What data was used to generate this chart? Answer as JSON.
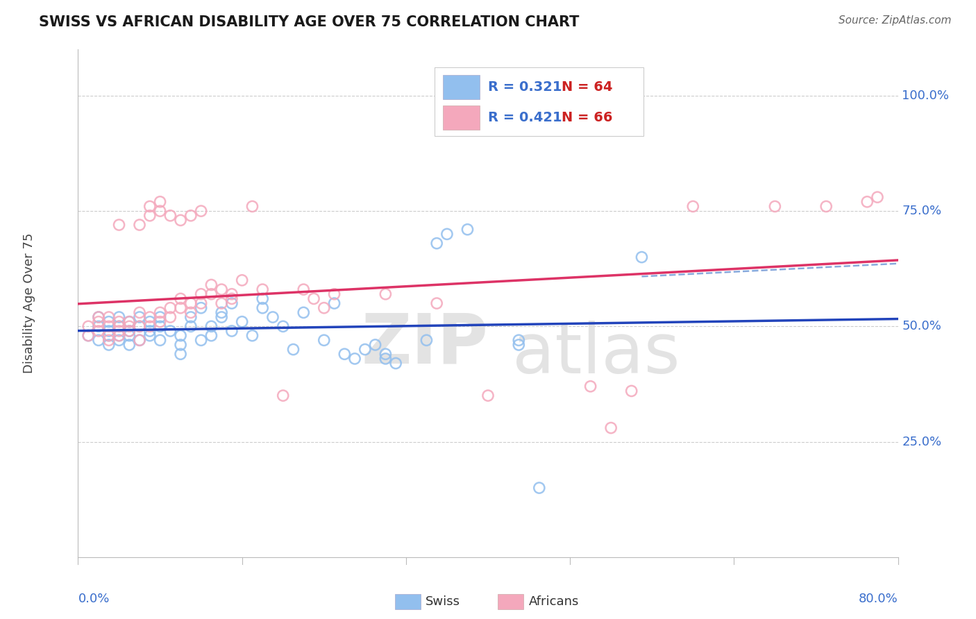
{
  "title": "SWISS VS AFRICAN DISABILITY AGE OVER 75 CORRELATION CHART",
  "source": "Source: ZipAtlas.com",
  "ylabel": "Disability Age Over 75",
  "ytick_labels": [
    "25.0%",
    "50.0%",
    "75.0%",
    "100.0%"
  ],
  "ytick_values": [
    25.0,
    50.0,
    75.0,
    100.0
  ],
  "xlim": [
    0.0,
    80.0
  ],
  "ylim": [
    0.0,
    110.0
  ],
  "swiss_color": "#92bfee",
  "african_color": "#f4a8bc",
  "swiss_R": 0.321,
  "swiss_N": 64,
  "african_R": 0.421,
  "african_N": 66,
  "legend_R_color": "#3a6ecc",
  "legend_N_color": "#cc2222",
  "regression_blue_color": "#2244bb",
  "regression_pink_color": "#dd3366",
  "regression_dash_color": "#88aadd",
  "background_color": "#ffffff",
  "grid_color": "#cccccc",
  "swiss_scatter_x": [
    1,
    2,
    2,
    2,
    3,
    3,
    3,
    3,
    4,
    4,
    4,
    4,
    5,
    5,
    5,
    5,
    6,
    6,
    6,
    7,
    7,
    7,
    8,
    8,
    8,
    9,
    10,
    10,
    10,
    11,
    11,
    12,
    12,
    13,
    13,
    14,
    14,
    15,
    15,
    16,
    17,
    18,
    18,
    19,
    20,
    21,
    22,
    24,
    25,
    26,
    27,
    28,
    29,
    30,
    30,
    31,
    34,
    35,
    36,
    38,
    43,
    43,
    45,
    55
  ],
  "swiss_scatter_y": [
    48,
    50,
    47,
    52,
    49,
    48,
    51,
    46,
    50,
    48,
    52,
    47,
    49,
    51,
    48,
    46,
    50,
    47,
    52,
    49,
    48,
    51,
    50,
    47,
    52,
    49,
    48,
    46,
    44,
    52,
    50,
    47,
    54,
    50,
    48,
    52,
    53,
    49,
    55,
    51,
    48,
    56,
    54,
    52,
    50,
    45,
    53,
    47,
    55,
    44,
    43,
    45,
    46,
    44,
    43,
    42,
    47,
    68,
    70,
    71,
    47,
    46,
    15,
    65
  ],
  "african_scatter_x": [
    1,
    1,
    2,
    2,
    2,
    3,
    3,
    3,
    3,
    4,
    4,
    4,
    4,
    4,
    5,
    5,
    5,
    6,
    6,
    6,
    6,
    7,
    7,
    7,
    7,
    8,
    8,
    8,
    8,
    9,
    9,
    9,
    10,
    10,
    10,
    11,
    11,
    11,
    12,
    12,
    12,
    13,
    13,
    14,
    14,
    15,
    15,
    16,
    17,
    18,
    20,
    22,
    23,
    24,
    25,
    30,
    35,
    40,
    50,
    52,
    54,
    60,
    68,
    73,
    77,
    78
  ],
  "african_scatter_y": [
    48,
    50,
    49,
    51,
    52,
    50,
    47,
    48,
    52,
    51,
    49,
    50,
    48,
    72,
    50,
    51,
    49,
    50,
    53,
    47,
    72,
    50,
    52,
    76,
    74,
    53,
    51,
    77,
    75,
    52,
    54,
    74,
    56,
    54,
    73,
    55,
    53,
    74,
    57,
    55,
    75,
    59,
    57,
    55,
    58,
    57,
    56,
    60,
    76,
    58,
    35,
    58,
    56,
    54,
    57,
    57,
    55,
    35,
    37,
    28,
    36,
    76,
    76,
    76,
    77,
    78
  ],
  "xtick_positions": [
    0,
    16,
    32,
    48,
    64,
    80
  ],
  "watermark_color": "#dddddd"
}
